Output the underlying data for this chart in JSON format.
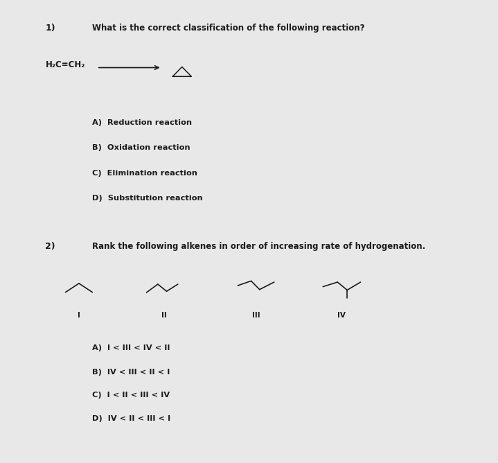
{
  "bg_color_box": "#c8c8c8",
  "outer_bg": "#e8e8e8",
  "text_color": "#1a1a1a",
  "q1_number": "1)",
  "q1_question": "What is the correct classification of the following reaction?",
  "q1_reactant": "H₂C=CH₂",
  "q1_choices": [
    "A)  Reduction reaction",
    "B)  Oxidation reaction",
    "C)  Elimination reaction",
    "D)  Substitution reaction"
  ],
  "q2_number": "2)",
  "q2_question": "Rank the following alkenes in order of increasing rate of hydrogenation.",
  "q2_labels": [
    "I",
    "II",
    "III",
    "IV"
  ],
  "q2_choices": [
    "A)  I < III < IV < II",
    "B)  IV < III < II < I",
    "C)  I < II < III < IV",
    "D)  IV < II < III < I"
  ],
  "font_size_question": 8.5,
  "font_size_choices": 8.2,
  "font_size_number": 9,
  "font_size_labels": 7.5,
  "font_size_reactant": 8.5
}
